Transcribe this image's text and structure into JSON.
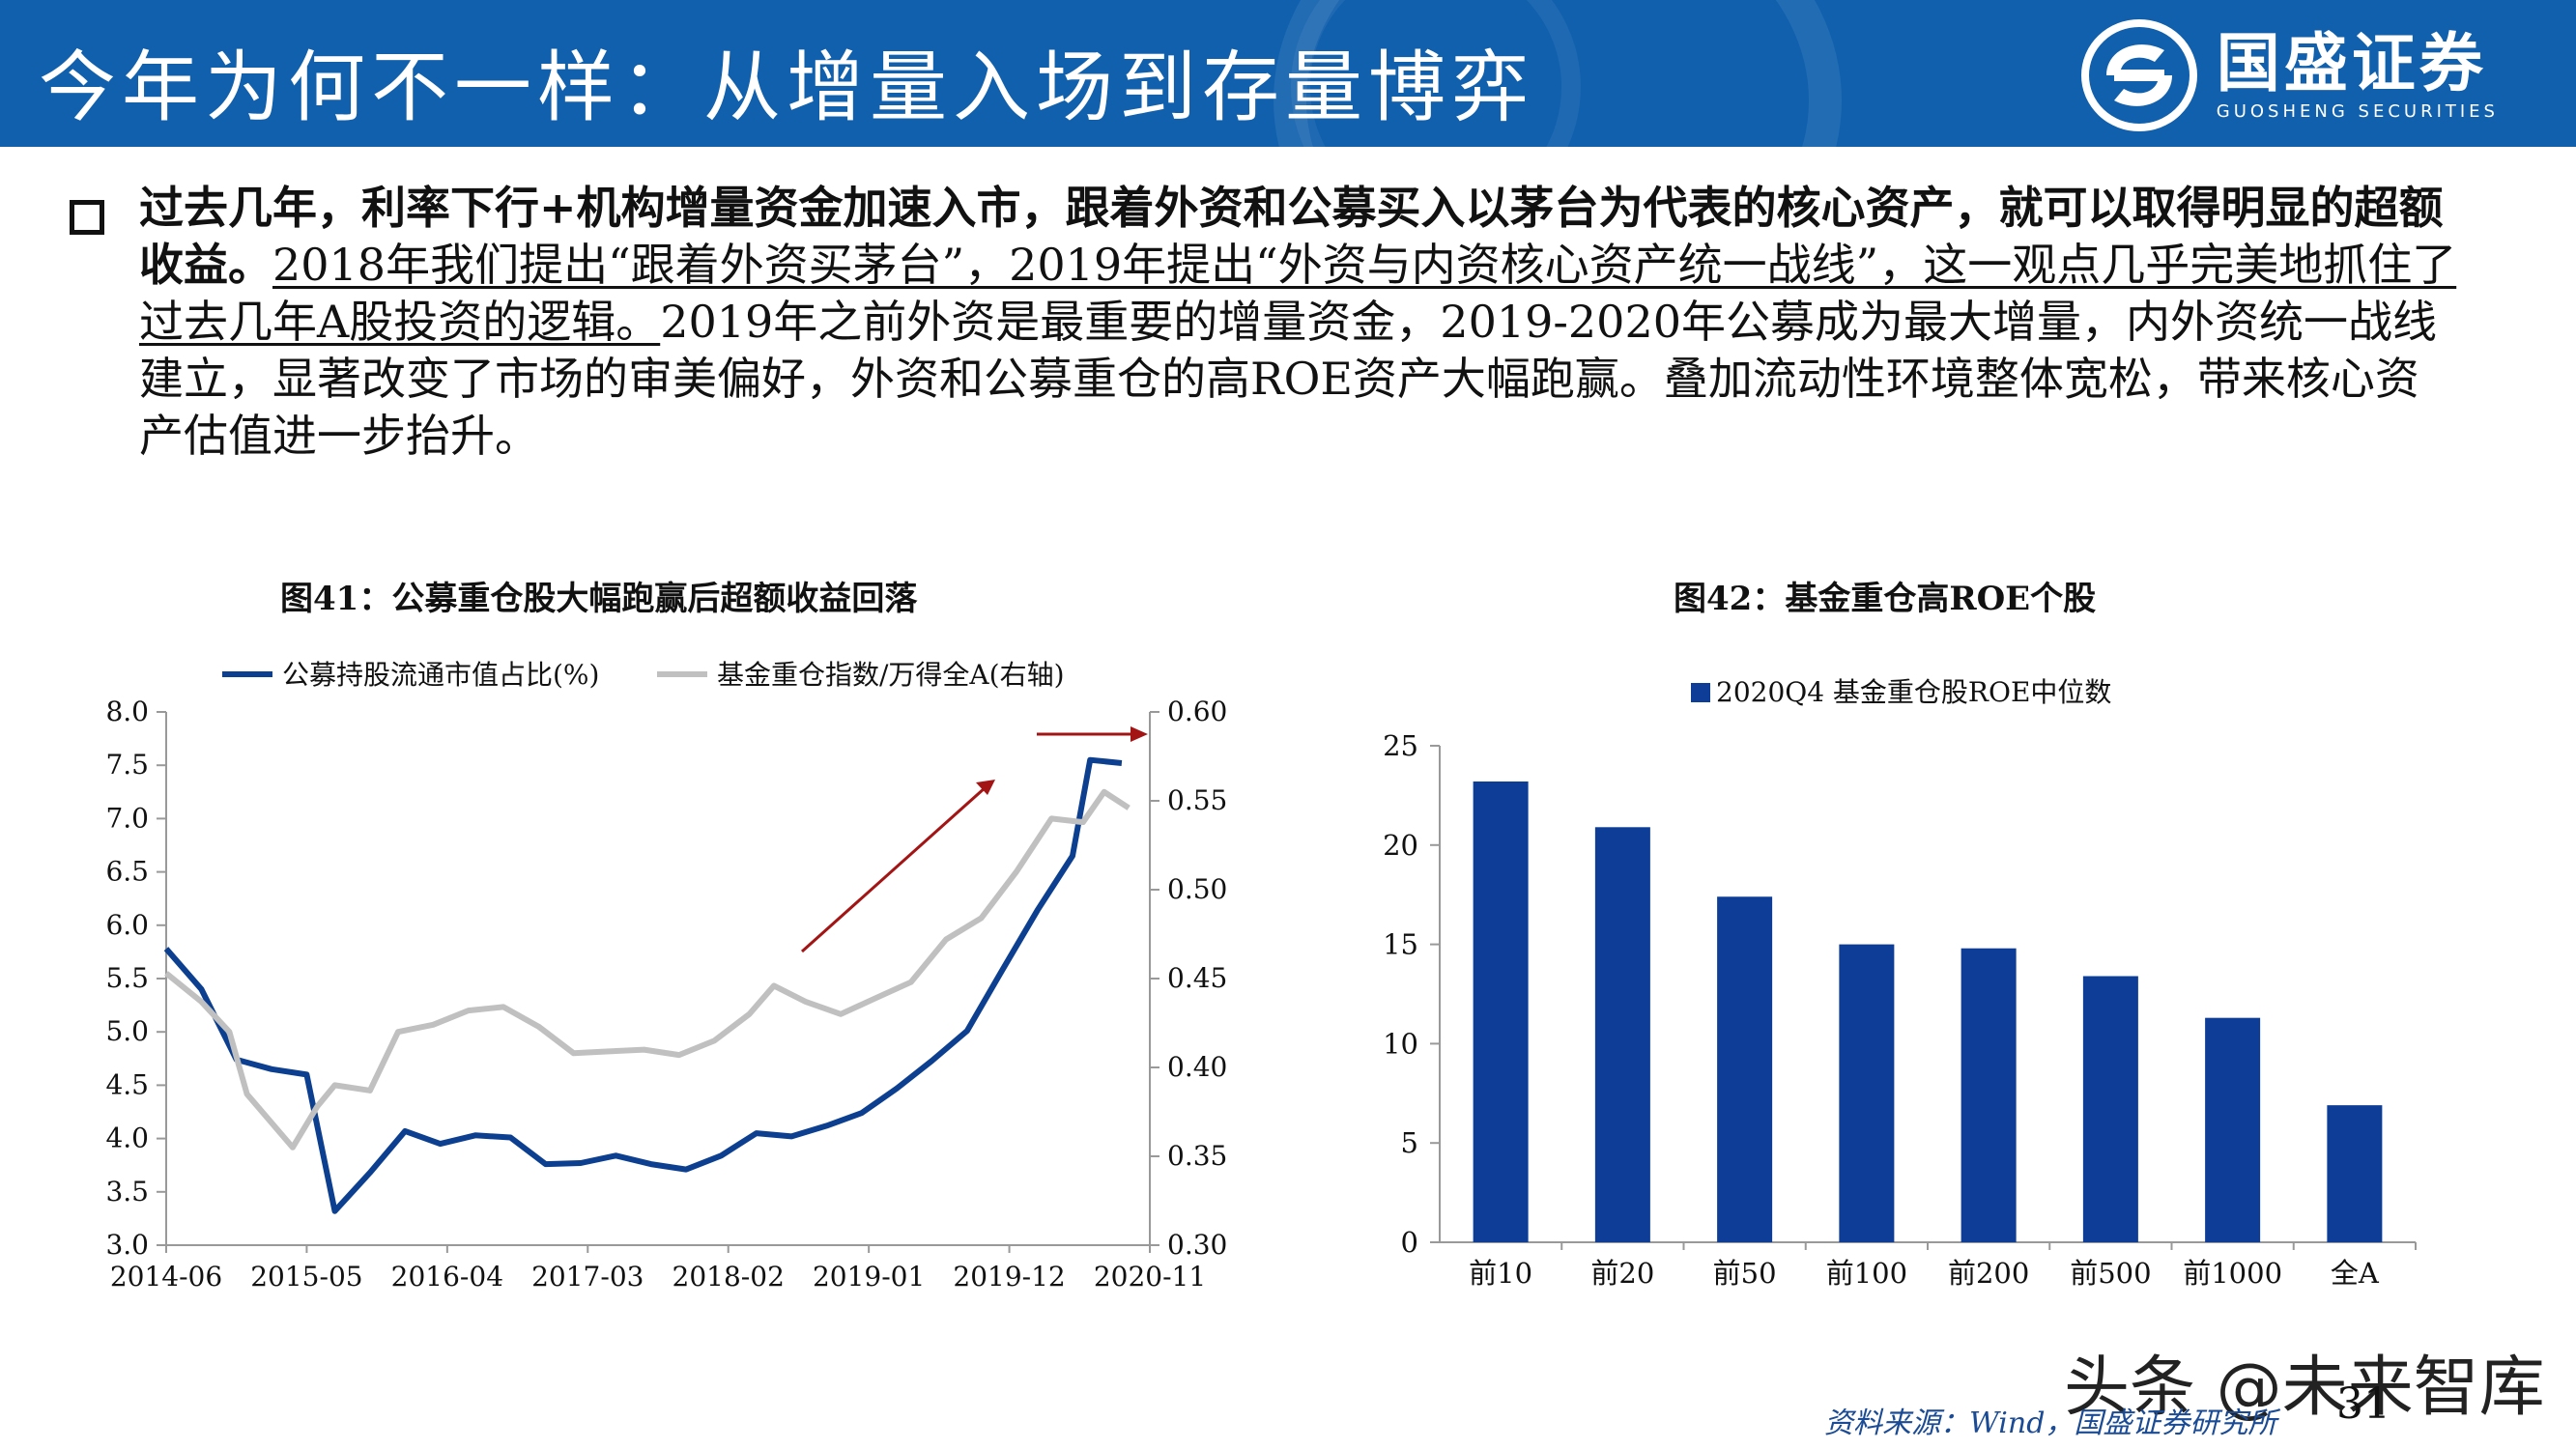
{
  "header": {
    "title": "今年为何不一样：从增量入场到存量博弈",
    "logo_cn": "国盛证券",
    "logo_en": "GUOSHENG SECURITIES"
  },
  "body": {
    "bold_text": "过去几年，利率下行+机构增量资金加速入市，跟着外资和公募买入以茅台为代表的核心资产，就可以取得明显的超额收益。",
    "underlined_text": "2018年我们提出“跟着外资买茅台”，2019年提出“外资与内资核心资产统一战线”，这一观点几乎完美地抓住了过去几年A股投资的逻辑。",
    "plain_text": "2019年之前外资是最重要的增量资金，2019-2020年公募成为最大增量，内外资统一战线建立，显著改变了市场的审美偏好，外资和公募重仓的高ROE资产大幅跑赢。叠加流动性环境整体宽松，带来核心资产估值进一步抬升。"
  },
  "figure41": {
    "title": "图41：公募重仓股大幅跑赢后超额收益回落"
  },
  "figure42": {
    "title": "图42：基金重仓高ROE个股"
  },
  "footer": {
    "source": "资料来源：Wind，国盛证券研究所",
    "page_number": "31",
    "watermark": "头条 @未来智库"
  },
  "colors": {
    "header_blue": "#1060ad",
    "series_blue": "#0c3f8f",
    "series_gray": "#c0c0c0",
    "arrow_red": "#a31515",
    "bar_blue": "#0d3d96"
  },
  "chart_data": [
    {
      "type": "line",
      "title": "图41：公募重仓股大幅跑赢后超额收益回落",
      "x_tick_labels": [
        "2014-06",
        "2015-05",
        "2016-04",
        "2017-03",
        "2018-02",
        "2019-01",
        "2019-12",
        "2020-11"
      ],
      "x_range": [
        0,
        28
      ],
      "y_left": {
        "range": [
          3.0,
          8.0
        ],
        "ticks": [
          "3.0",
          "3.5",
          "4.0",
          "4.5",
          "5.0",
          "5.5",
          "6.0",
          "6.5",
          "7.0",
          "7.5",
          "8.0"
        ]
      },
      "y_right": {
        "range": [
          0.3,
          0.6
        ],
        "ticks": [
          "0.30",
          "0.35",
          "0.40",
          "0.45",
          "0.50",
          "0.55",
          "0.60"
        ]
      },
      "legend_position": "top",
      "series": [
        {
          "name": "公募持股流通市值占比(%)",
          "axis": "left",
          "x": [
            0,
            1,
            2,
            3,
            4,
            4.8,
            5.8,
            6.8,
            7.8,
            8.8,
            9.8,
            10.8,
            11.8,
            12.8,
            13.8,
            14.8,
            15.8,
            16.8,
            17.8,
            18.8,
            19.8,
            20.8,
            21.8,
            22.8,
            23.8,
            24.8,
            25.8,
            26.3,
            27.2
          ],
          "y": [
            5.78,
            5.4,
            4.74,
            4.65,
            4.6,
            3.32,
            3.68,
            4.07,
            3.95,
            4.03,
            4.01,
            3.76,
            3.77,
            3.84,
            3.76,
            3.71,
            3.84,
            4.05,
            4.02,
            4.12,
            4.24,
            4.47,
            4.73,
            5.01,
            5.58,
            6.14,
            6.65,
            7.55,
            7.52
          ]
        },
        {
          "name": "基金重仓指数/万得全A(右轴)",
          "axis": "right",
          "x": [
            0,
            1,
            1.8,
            2.3,
            3.6,
            4.3,
            4.8,
            5.8,
            6.6,
            7.6,
            8.6,
            9.6,
            10.6,
            11.6,
            12.6,
            13.6,
            14.6,
            15.6,
            16.6,
            17.3,
            18.2,
            19.2,
            20.2,
            21.2,
            22.2,
            23.2,
            24.2,
            25.2,
            26.1,
            26.7,
            27.4
          ],
          "y": [
            0.453,
            0.437,
            0.42,
            0.385,
            0.355,
            0.378,
            0.39,
            0.387,
            0.42,
            0.424,
            0.432,
            0.434,
            0.423,
            0.408,
            0.409,
            0.41,
            0.407,
            0.415,
            0.43,
            0.446,
            0.437,
            0.43,
            0.439,
            0.448,
            0.472,
            0.484,
            0.51,
            0.54,
            0.538,
            0.555,
            0.546
          ]
        }
      ],
      "annotations": [
        {
          "type": "arrow",
          "description": "red diagonal arrow indicating upward trend"
        },
        {
          "type": "arrow",
          "description": "red horizontal arrow pointing right at the top"
        }
      ]
    },
    {
      "type": "bar",
      "title": "图42：基金重仓高ROE个股",
      "categories": [
        "前10",
        "前20",
        "前50",
        "前100",
        "前200",
        "前500",
        "前1000",
        "全A"
      ],
      "series": [
        {
          "name": "2020Q4 基金重仓股ROE中位数",
          "values": [
            23.2,
            20.9,
            17.4,
            15.0,
            14.8,
            13.4,
            11.3,
            6.9
          ]
        }
      ],
      "ylim": [
        0,
        25
      ],
      "y_ticks": [
        "0",
        "5",
        "10",
        "15",
        "20",
        "25"
      ],
      "legend_position": "top-left"
    }
  ]
}
